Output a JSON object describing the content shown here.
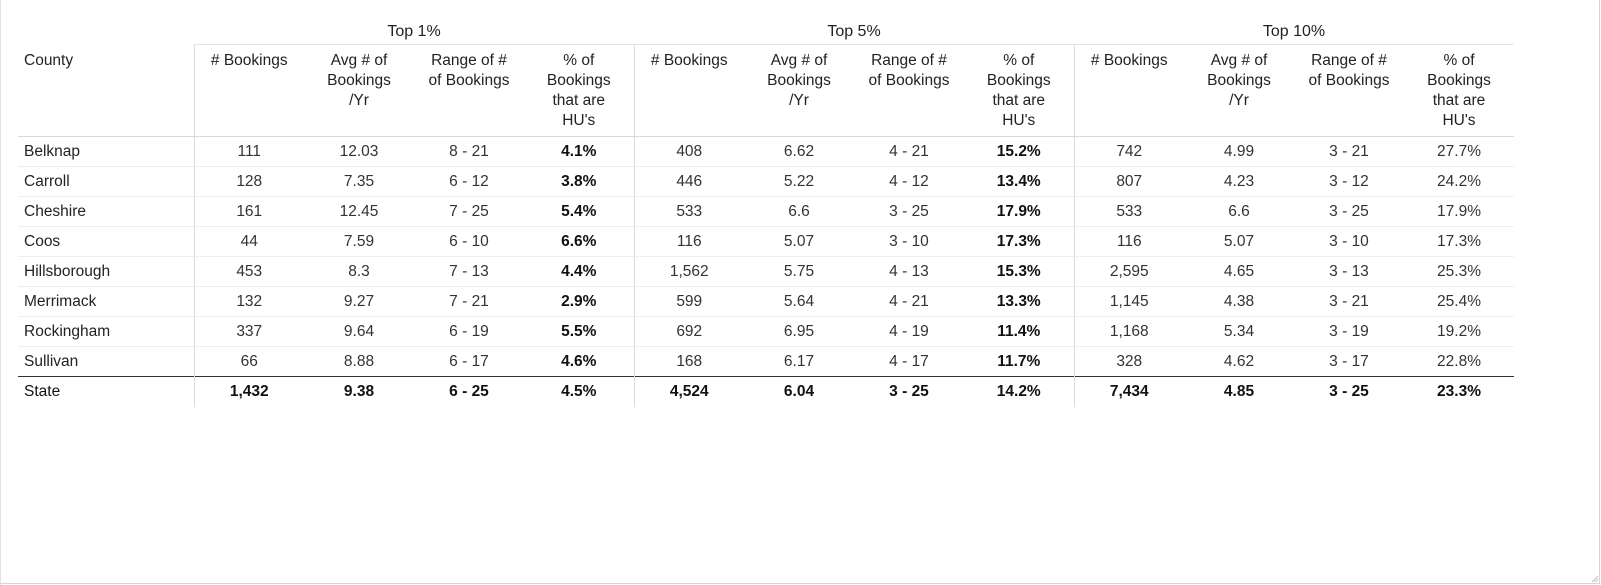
{
  "table": {
    "county_header": "County",
    "groups": [
      "Top 1%",
      "Top 5%",
      "Top 10%"
    ],
    "sub_headers": [
      [
        "# Bookings"
      ],
      [
        "Avg # of",
        "Bookings",
        "/Yr"
      ],
      [
        "Range of #",
        "of Bookings"
      ],
      [
        "% of",
        "Bookings",
        "that are",
        "HU's"
      ]
    ],
    "rows": [
      {
        "county": "Belknap",
        "cells": [
          "111",
          "12.03",
          "8 - 21",
          "4.1%",
          "408",
          "6.62",
          "4 - 21",
          "15.2%",
          "742",
          "4.99",
          "3 - 21",
          "27.7%"
        ]
      },
      {
        "county": "Carroll",
        "cells": [
          "128",
          "7.35",
          "6 - 12",
          "3.8%",
          "446",
          "5.22",
          "4 - 12",
          "13.4%",
          "807",
          "4.23",
          "3 - 12",
          "24.2%"
        ]
      },
      {
        "county": "Cheshire",
        "cells": [
          "161",
          "12.45",
          "7 - 25",
          "5.4%",
          "533",
          "6.6",
          "3 - 25",
          "17.9%",
          "533",
          "6.6",
          "3 - 25",
          "17.9%"
        ]
      },
      {
        "county": "Coos",
        "cells": [
          "44",
          "7.59",
          "6 - 10",
          "6.6%",
          "116",
          "5.07",
          "3 - 10",
          "17.3%",
          "116",
          "5.07",
          "3 - 10",
          "17.3%"
        ]
      },
      {
        "county": "Hillsborough",
        "cells": [
          "453",
          "8.3",
          "7 - 13",
          "4.4%",
          "1,562",
          "5.75",
          "4 - 13",
          "15.3%",
          "2,595",
          "4.65",
          "3 - 13",
          "25.3%"
        ]
      },
      {
        "county": "Merrimack",
        "cells": [
          "132",
          "9.27",
          "7 - 21",
          "2.9%",
          "599",
          "5.64",
          "4 - 21",
          "13.3%",
          "1,145",
          "4.38",
          "3 - 21",
          "25.4%"
        ]
      },
      {
        "county": "Rockingham",
        "cells": [
          "337",
          "9.64",
          "6 - 19",
          "5.5%",
          "692",
          "6.95",
          "4 - 19",
          "11.4%",
          "1,168",
          "5.34",
          "3 - 19",
          "19.2%"
        ]
      },
      {
        "county": "Sullivan",
        "cells": [
          "66",
          "8.88",
          "6 - 17",
          "4.6%",
          "168",
          "6.17",
          "4 - 17",
          "11.7%",
          "328",
          "4.62",
          "3 - 17",
          "22.8%"
        ]
      }
    ],
    "total": {
      "county": "State",
      "cells": [
        "1,432",
        "9.38",
        "6 - 25",
        "4.5%",
        "4,524",
        "6.04",
        "3 - 25",
        "14.2%",
        "7,434",
        "4.85",
        "3 - 25",
        "23.3%"
      ]
    }
  }
}
